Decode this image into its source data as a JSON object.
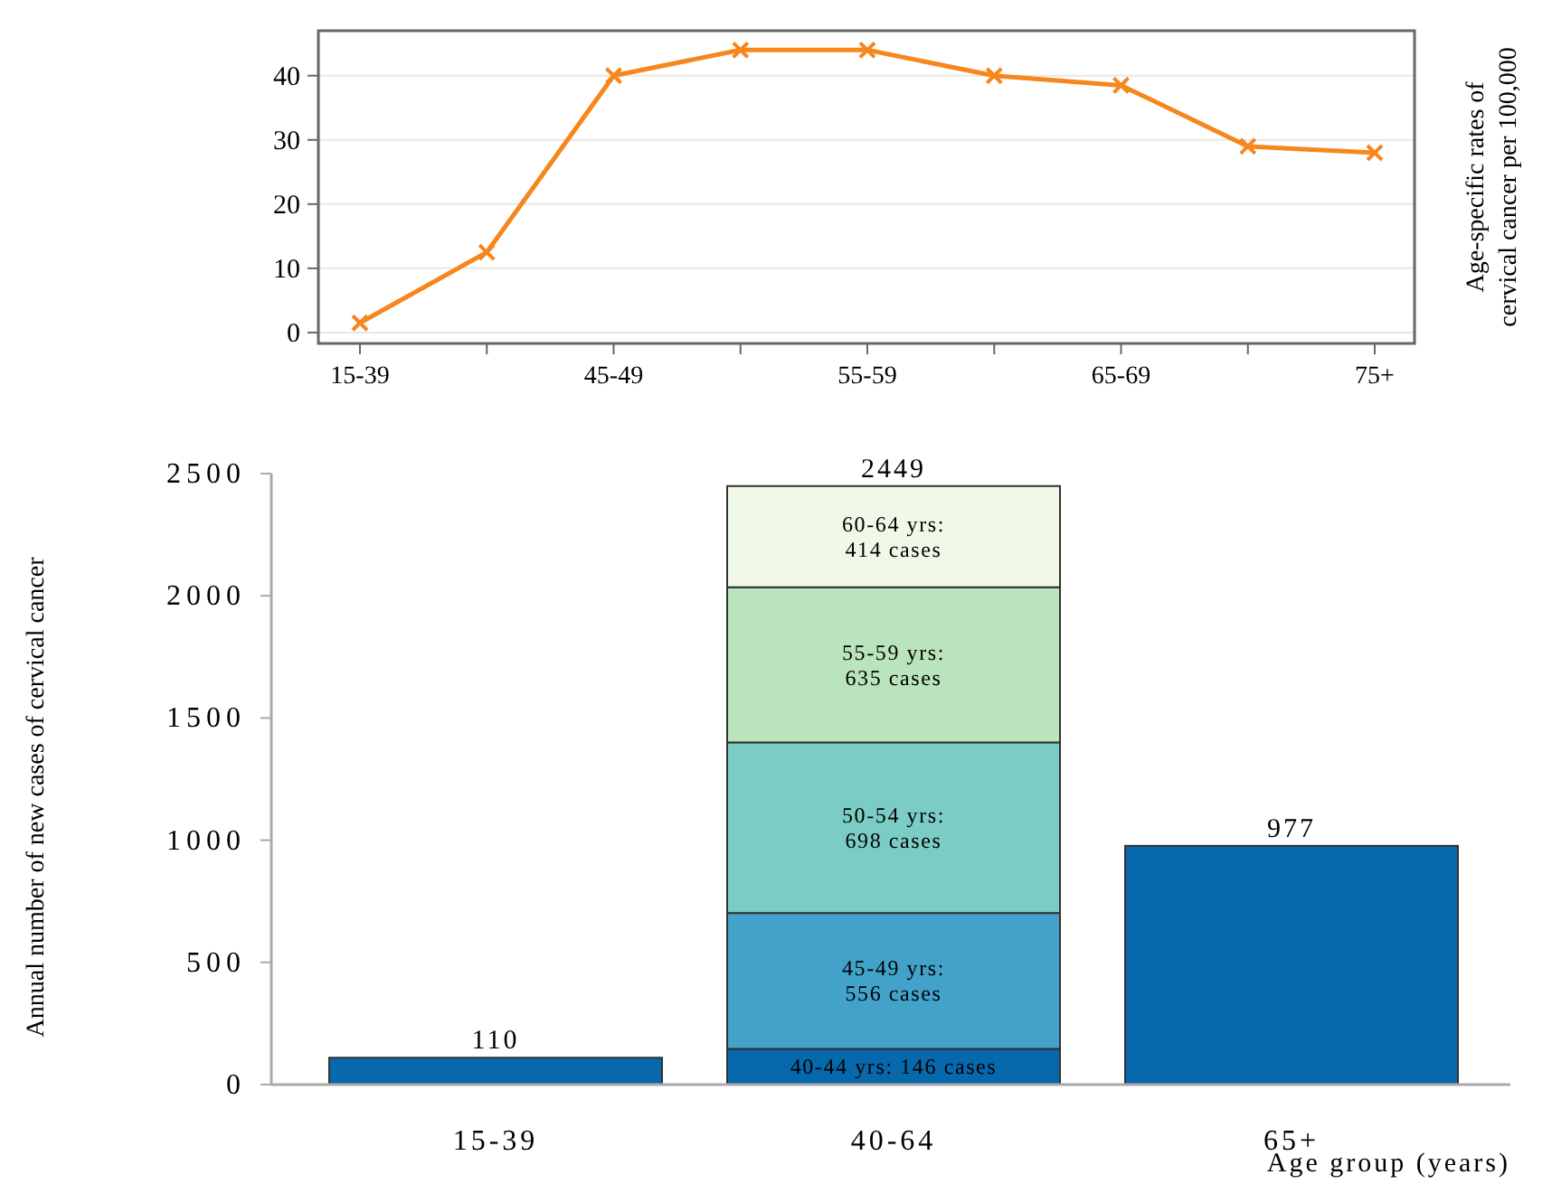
{
  "chart_data": [
    {
      "type": "line",
      "categories": [
        "15-39",
        null,
        "45-49",
        null,
        "55-59",
        null,
        "65-69",
        null,
        "75+"
      ],
      "series": [
        {
          "color": "#f7861c",
          "values": [
            1.5,
            12.5,
            40,
            44,
            44,
            40,
            38.5,
            29,
            28
          ]
        }
      ],
      "ylabel": "Age-specific rates of cervical cancer per 100,000",
      "ylim": [
        -1.7,
        47
      ],
      "yticks": [
        0,
        10,
        20,
        30,
        40
      ],
      "grid": "y",
      "marker": "cross"
    },
    {
      "type": "bar",
      "stacked": true,
      "categories": [
        "15-39",
        "40-64",
        "65+"
      ],
      "series": [
        {
          "color": "#0868ac",
          "values": [
            110,
            146,
            977
          ],
          "value_labels": [
            null,
            "40-44 yrs: 146 cases",
            null
          ]
        },
        {
          "color": "#43a2ca",
          "values": [
            null,
            556,
            null
          ],
          "value_labels": [
            null,
            "45-49 yrs: 556 cases",
            null
          ]
        },
        {
          "color": "#7bccc4",
          "values": [
            null,
            698,
            null
          ],
          "value_labels": [
            null,
            "50-54 yrs: 698 cases",
            null
          ]
        },
        {
          "color": "#bae4bc",
          "values": [
            null,
            635,
            null
          ],
          "value_labels": [
            null,
            "55-59 yrs: 635 cases",
            null
          ]
        },
        {
          "color": "#f0f9e8",
          "values": [
            null,
            414,
            null
          ],
          "value_labels": [
            null,
            "60-64 yrs: 414 cases",
            null
          ]
        }
      ],
      "totals": [
        "110",
        "2449",
        "977"
      ],
      "ylabel": "Annual number of new cases of cervical cancer",
      "xlabel": "Age group (years)",
      "ylim": [
        0,
        2500
      ],
      "yticks": [
        0,
        500,
        1000,
        1500,
        2000,
        2500
      ],
      "grid": false
    }
  ]
}
